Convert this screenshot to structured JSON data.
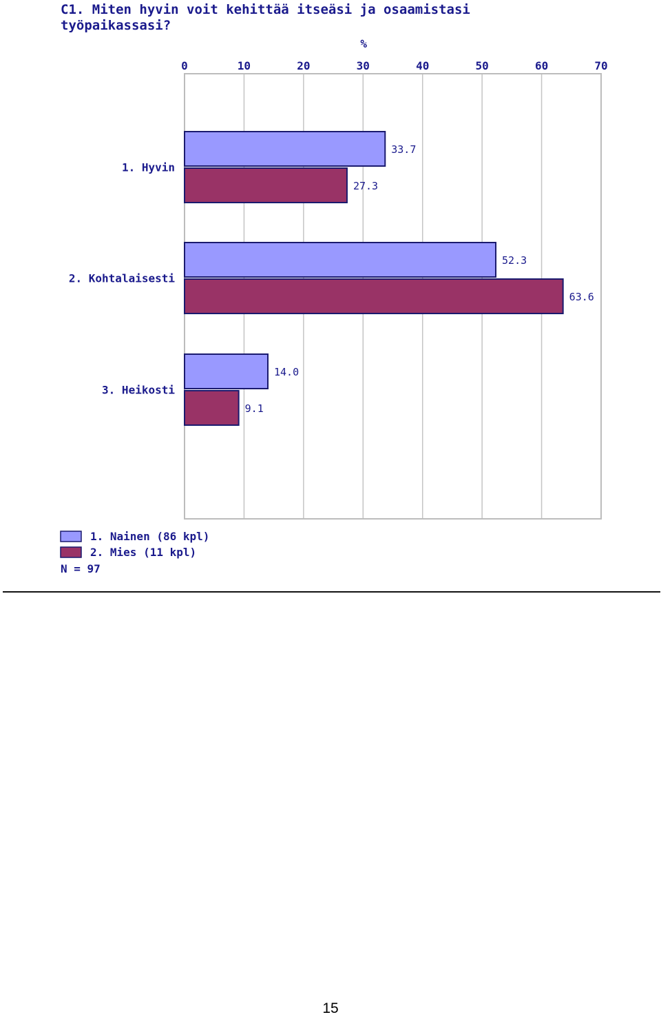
{
  "chart_data": {
    "type": "bar",
    "orientation": "horizontal",
    "title": "C1. Miten hyvin voit kehittää itseäsi ja osaamistasi työpaikassasi?",
    "xlabel": "%",
    "xlim": [
      0,
      70
    ],
    "xticks": [
      "0",
      "10",
      "20",
      "30",
      "40",
      "50",
      "60",
      "70"
    ],
    "grid": true,
    "legend_position": "bottom-left",
    "categories": [
      "1. Hyvin",
      "2. Kohtalaisesti",
      "3. Heikosti"
    ],
    "series": [
      {
        "name": "1. Nainen  (86 kpl)",
        "color": "#9999ff",
        "values": [
          33.7,
          52.3,
          14.0
        ],
        "labels": [
          "33.7",
          "52.3",
          "14.0"
        ]
      },
      {
        "name": "2. Mies  (11 kpl)",
        "color": "#993366",
        "values": [
          27.3,
          63.6,
          9.1
        ],
        "labels": [
          "27.3",
          "63.6",
          "9.1"
        ]
      }
    ],
    "note": "N = 97"
  },
  "page": {
    "number": "15"
  }
}
